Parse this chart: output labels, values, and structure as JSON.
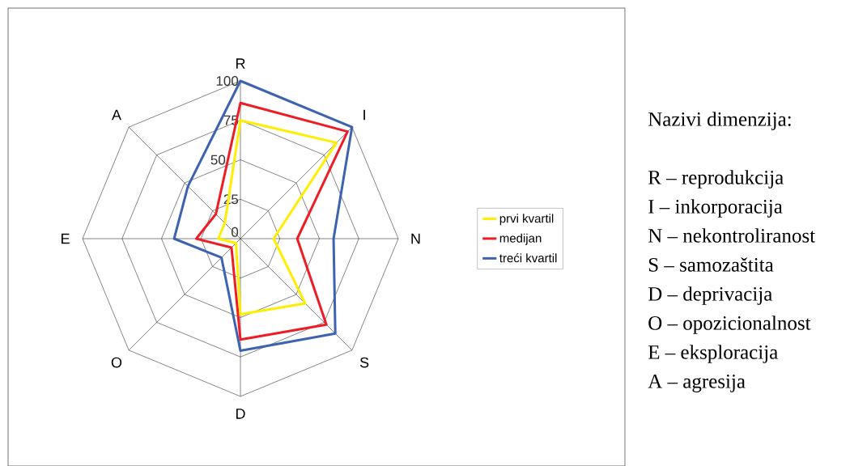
{
  "chart_data": {
    "type": "radar",
    "categories": [
      "R",
      "I",
      "N",
      "S",
      "D",
      "O",
      "E",
      "A"
    ],
    "series": [
      {
        "name": "prvi kvartil",
        "color": "#ffee00",
        "values": [
          75,
          86,
          21,
          58,
          48,
          4,
          14,
          14
        ]
      },
      {
        "name": "medijan",
        "color": "#ee1c25",
        "values": [
          86,
          96,
          36,
          77,
          64,
          8,
          28,
          22
        ]
      },
      {
        "name": "treći kvartil",
        "color": "#3c62b0",
        "values": [
          100,
          100,
          59,
          85,
          71,
          17,
          42,
          47
        ]
      }
    ],
    "ylim": [
      0,
      100
    ],
    "yticks": [
      0,
      25,
      50,
      75,
      100
    ],
    "grid": true,
    "legend": "right",
    "annotations": [
      "Nazivi dimenzija:",
      "R – reprodukcija",
      "I –  inkorporacija",
      "N – nekontroliranost",
      "S –  samozaštita",
      "D – deprivacija",
      "O – opozicionalnost",
      "E – eksploracija",
      "A – agresija"
    ]
  }
}
